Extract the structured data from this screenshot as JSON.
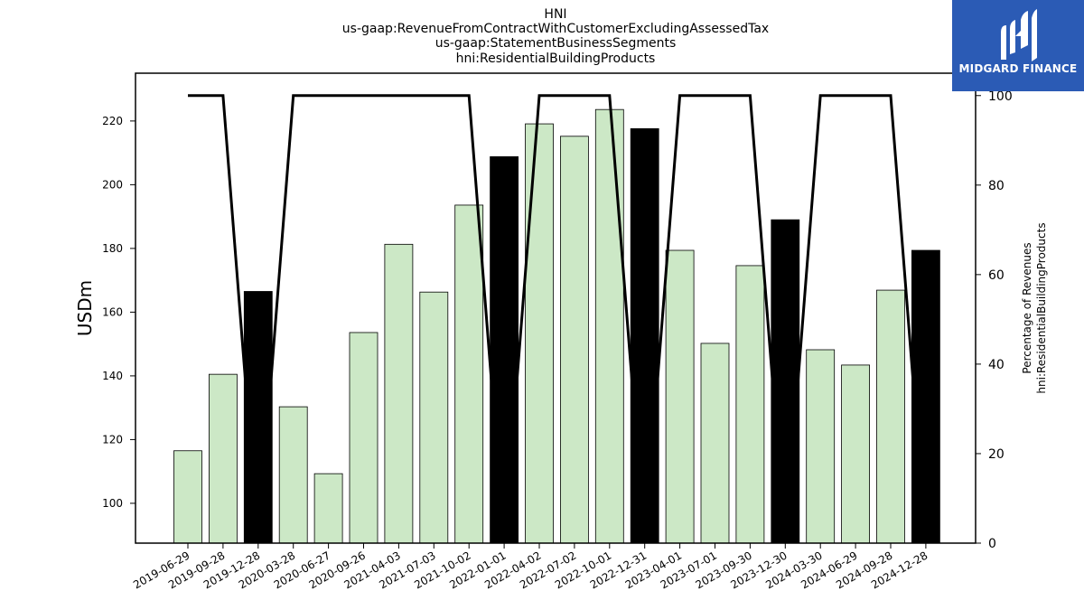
{
  "logo": {
    "text": "MIDGARD FINANCE",
    "icon": "midgard-logo-icon",
    "color": "#2b5bb5"
  },
  "chart_data": {
    "type": "bar",
    "title_lines": [
      "HNI",
      "us-gaap:RevenueFromContractWithCustomerExcludingAssessedTax",
      "us-gaap:StatementBusinessSegments",
      "hni:ResidentialBuildingProducts"
    ],
    "ylabel": "USDm",
    "ylabel_right": [
      "Percentage of Revenues",
      "hni:ResidentialBuildingProducts"
    ],
    "ylim": [
      87.5,
      235
    ],
    "yticks": [
      100,
      120,
      140,
      160,
      180,
      200,
      220
    ],
    "ylim_right": [
      0,
      105
    ],
    "yticks_right": [
      0,
      20,
      40,
      60,
      80,
      100
    ],
    "grid": false,
    "categories": [
      "2019-06-29",
      "2019-09-28",
      "2019-12-28",
      "2020-03-28",
      "2020-06-27",
      "2020-09-26",
      "2021-04-03",
      "2021-07-03",
      "2021-10-02",
      "2022-01-01",
      "2022-04-02",
      "2022-07-02",
      "2022-10-01",
      "2022-12-31",
      "2023-04-01",
      "2023-07-01",
      "2023-09-30",
      "2023-12-30",
      "2024-03-30",
      "2024-06-29",
      "2024-09-28",
      "2024-12-28"
    ],
    "series": [
      {
        "type": "bar",
        "axis": "left",
        "values": [
          116.5,
          140.5,
          166.5,
          130.3,
          109.3,
          153.6,
          181.3,
          166.3,
          193.6,
          208.8,
          219.1,
          215.2,
          223.6,
          217.6,
          179.4,
          150.2,
          174.6,
          189.0,
          148.2,
          143.4,
          166.9,
          179.4
        ],
        "quarter_type": [
          "q",
          "q",
          "fy",
          "q",
          "q",
          "q",
          "q",
          "q",
          "q",
          "fy",
          "q",
          "q",
          "q",
          "fy",
          "q",
          "q",
          "q",
          "fy",
          "q",
          "q",
          "q",
          "fy"
        ]
      },
      {
        "type": "line",
        "axis": "right",
        "values": [
          100,
          100,
          0,
          100,
          100,
          100,
          100,
          100,
          100,
          0,
          100,
          100,
          100,
          0,
          100,
          100,
          100,
          0,
          100,
          100,
          100,
          0
        ]
      }
    ],
    "colors": {
      "bar_quarter": "#cce8c6",
      "bar_annual": "#000000",
      "bar_edge": "#000000",
      "line": "#000000"
    }
  }
}
